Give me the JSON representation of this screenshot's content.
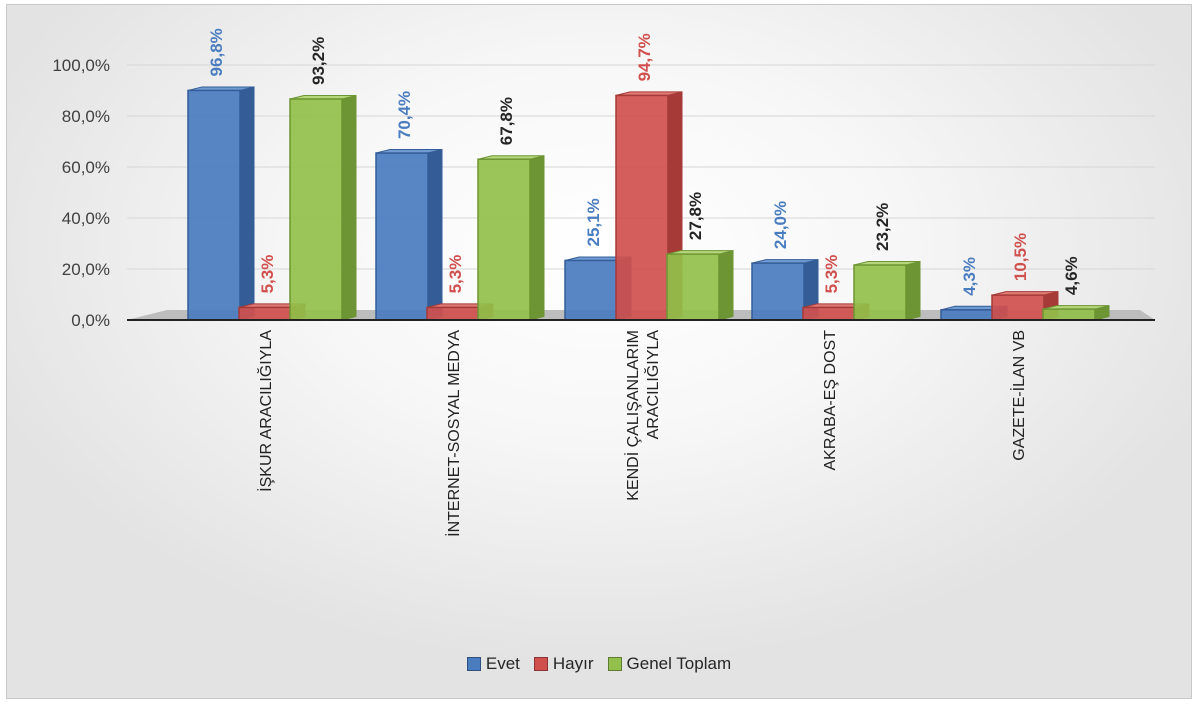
{
  "chart_data": {
    "type": "bar",
    "categories": [
      [
        "İŞKUR ARACILIĞIYLA"
      ],
      [
        "İNTERNET-SOSYAL MEDYA"
      ],
      [
        "KENDİ ÇALIŞANLARIM",
        "ARACILIĞIYLA"
      ],
      [
        "AKRABA-EŞ DOST"
      ],
      [
        "GAZETE-İLAN VB"
      ]
    ],
    "series": [
      {
        "name": "Evet",
        "values": [
          96.8,
          70.4,
          25.1,
          24.0,
          4.3
        ],
        "labels": [
          "96,8%",
          "70,4%",
          "25,1%",
          "24,0%",
          "4,3%"
        ]
      },
      {
        "name": "Hayır",
        "values": [
          5.3,
          5.3,
          94.7,
          5.3,
          10.5
        ],
        "labels": [
          "5,3%",
          "5,3%",
          "94,7%",
          "5,3%",
          "10,5%"
        ]
      },
      {
        "name": "Genel Toplam",
        "values": [
          93.2,
          67.8,
          27.8,
          23.2,
          4.6
        ],
        "labels": [
          "93,2%",
          "67,8%",
          "27,8%",
          "23,2%",
          "4,6%"
        ]
      }
    ],
    "y_ticks": [
      "0,0%",
      "20,0%",
      "40,0%",
      "60,0%",
      "80,0%",
      "100,0%"
    ],
    "ylim": [
      0,
      100
    ],
    "grid": true,
    "legend_position": "bottom",
    "colors": {
      "Evet": {
        "front": "#4a7cc0",
        "side": "#345d97",
        "top": "#6f9ad2",
        "label": "#4a7cc0"
      },
      "Hayır": {
        "front": "#d0504d",
        "side": "#a53a37",
        "top": "#e07a77",
        "label": "#d0504d"
      },
      "Genel Toplam": {
        "front": "#92c04a",
        "side": "#6d9533",
        "top": "#b5d67a",
        "label": "#262626"
      }
    }
  }
}
